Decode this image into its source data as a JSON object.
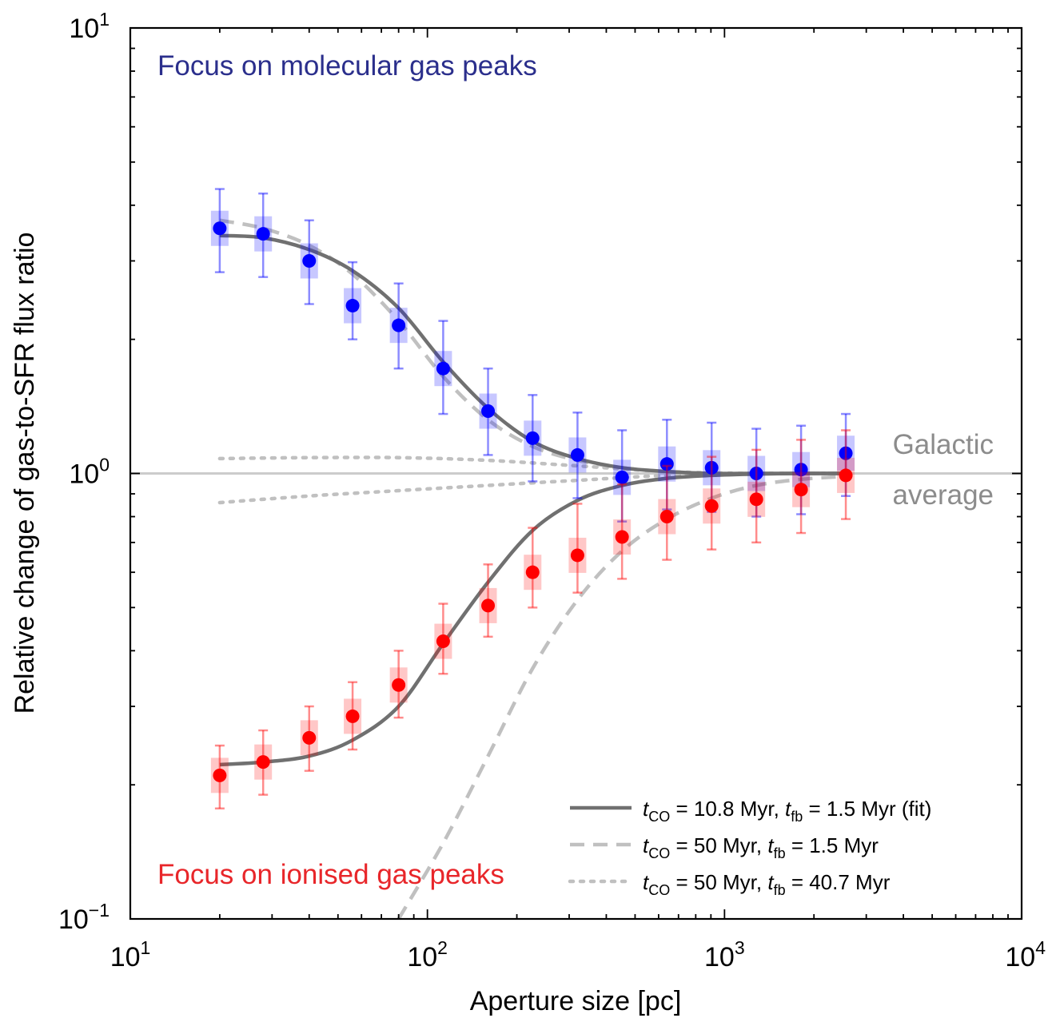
{
  "chart_data": {
    "type": "scatter",
    "xscale": "log",
    "yscale": "log",
    "xlim": [
      10,
      10000
    ],
    "ylim": [
      0.1,
      10
    ],
    "xlabel": "Aperture size [pc]",
    "ylabel": "Relative change of gas-to-SFR flux ratio",
    "x_ticks": [
      {
        "value": 10,
        "base": "10",
        "exp": "1"
      },
      {
        "value": 100,
        "base": "10",
        "exp": "2"
      },
      {
        "value": 1000,
        "base": "10",
        "exp": "3"
      },
      {
        "value": 10000,
        "base": "10",
        "exp": "4"
      }
    ],
    "y_ticks": [
      {
        "value": 0.1,
        "base": "10",
        "exp": "−1"
      },
      {
        "value": 1,
        "base": "10",
        "exp": "0"
      },
      {
        "value": 10,
        "base": "10",
        "exp": "1"
      }
    ],
    "annotations": {
      "molecular": "Focus on molecular gas peaks",
      "ionised": "Focus on ionised gas peaks",
      "galactic": "Galactic",
      "average": "average"
    },
    "colors": {
      "molecular": "#0000ff",
      "ionised": "#ff0000",
      "molecular_text": "#2b2f8c",
      "ionised_text": "#e8262a",
      "fit_line": "#707070",
      "model_line": "#c0c0c0",
      "galactic_text": "#8c8c8c"
    },
    "series": [
      {
        "key": "molecular",
        "x": [
          20,
          28,
          40,
          56,
          80,
          113,
          160,
          226,
          320,
          452,
          640,
          905,
          1280,
          1810,
          2560
        ],
        "y": [
          3.55,
          3.45,
          3.0,
          2.38,
          2.15,
          1.72,
          1.38,
          1.2,
          1.1,
          0.98,
          1.05,
          1.03,
          1.0,
          1.02,
          1.11
        ],
        "y_err_low": [
          2.83,
          2.76,
          2.4,
          2.0,
          1.72,
          1.36,
          1.1,
          0.96,
          0.88,
          0.78,
          0.83,
          0.82,
          0.8,
          0.81,
          0.89
        ],
        "y_err_high": [
          4.35,
          4.25,
          3.7,
          2.98,
          2.67,
          2.2,
          1.72,
          1.5,
          1.37,
          1.25,
          1.32,
          1.3,
          1.26,
          1.28,
          1.36
        ]
      },
      {
        "key": "ionised",
        "x": [
          20,
          28,
          40,
          56,
          80,
          113,
          160,
          226,
          320,
          452,
          640,
          905,
          1280,
          1810,
          2560
        ],
        "y": [
          0.21,
          0.225,
          0.255,
          0.285,
          0.335,
          0.42,
          0.505,
          0.6,
          0.655,
          0.72,
          0.8,
          0.845,
          0.875,
          0.92,
          0.99
        ],
        "y_err_low": [
          0.177,
          0.19,
          0.215,
          0.24,
          0.283,
          0.355,
          0.43,
          0.5,
          0.54,
          0.58,
          0.64,
          0.675,
          0.7,
          0.735,
          0.79
        ],
        "y_err_high": [
          0.245,
          0.265,
          0.3,
          0.34,
          0.4,
          0.51,
          0.625,
          0.755,
          0.855,
          0.945,
          1.04,
          1.09,
          1.13,
          1.19,
          1.25
        ]
      }
    ],
    "lines": [
      {
        "key": "fit_mol",
        "style": "solid",
        "x": [
          20,
          28,
          40,
          56,
          80,
          113,
          160,
          226,
          320,
          452,
          640,
          905,
          1280,
          1810,
          2560
        ],
        "y": [
          3.42,
          3.38,
          3.18,
          2.85,
          2.35,
          1.78,
          1.4,
          1.18,
          1.08,
          1.03,
          1.01,
          1.0,
          1.0,
          1.0,
          1.0
        ]
      },
      {
        "key": "fit_ion",
        "style": "solid",
        "x": [
          20,
          28,
          40,
          56,
          80,
          113,
          160,
          226,
          320,
          452,
          640,
          905,
          1280,
          1810,
          2560
        ],
        "y": [
          0.222,
          0.225,
          0.232,
          0.252,
          0.3,
          0.415,
          0.57,
          0.745,
          0.87,
          0.94,
          0.975,
          0.99,
          0.997,
          1.0,
          1.0
        ]
      },
      {
        "key": "dash_mol",
        "style": "dashed",
        "x": [
          20,
          28,
          40,
          56,
          80,
          113,
          160,
          226,
          320,
          452,
          640,
          905,
          1280,
          1810,
          2560
        ],
        "y": [
          3.7,
          3.55,
          3.25,
          2.8,
          2.2,
          1.65,
          1.32,
          1.15,
          1.07,
          1.03,
          1.01,
          1.0,
          1.0,
          1.0,
          1.0
        ]
      },
      {
        "key": "dash_ion",
        "style": "dashed",
        "x": [
          80,
          113,
          160,
          226,
          320,
          452,
          640,
          905,
          1280,
          1810,
          2560
        ],
        "y": [
          0.1,
          0.148,
          0.232,
          0.365,
          0.52,
          0.67,
          0.79,
          0.88,
          0.94,
          0.97,
          0.985
        ]
      },
      {
        "key": "dot_high",
        "style": "dotted",
        "x": [
          20,
          40,
          80,
          160,
          320,
          640,
          1280,
          2560
        ],
        "y": [
          1.08,
          1.085,
          1.085,
          1.07,
          1.04,
          1.01,
          1.0,
          1.0
        ]
      },
      {
        "key": "dot_low",
        "style": "dotted",
        "x": [
          20,
          40,
          80,
          160,
          320,
          640,
          1280,
          2560
        ],
        "y": [
          0.86,
          0.89,
          0.915,
          0.94,
          0.965,
          0.99,
          1.0,
          1.0
        ]
      }
    ],
    "legend": {
      "placement": "lower-right",
      "entries": [
        {
          "style": "solid",
          "t_co": "10.8",
          "t_fb": "1.5",
          "suffix": " (fit)"
        },
        {
          "style": "dashed",
          "t_co": "50",
          "t_fb": "1.5",
          "suffix": ""
        },
        {
          "style": "dotted",
          "t_co": "50",
          "t_fb": "40.7",
          "suffix": ""
        }
      ]
    }
  }
}
